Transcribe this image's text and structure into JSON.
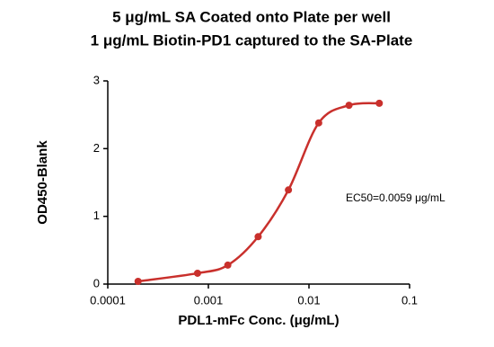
{
  "chart_data": {
    "type": "scatter",
    "title": [
      "5 μg/mL SA Coated onto Plate per well",
      "1 μg/mL Biotin-PD1 captured to the SA-Plate"
    ],
    "xlabel": "PDL1-mFc Conc. (μg/mL)",
    "ylabel": "OD450-Blank",
    "x": [
      0.0002,
      0.00078,
      0.00156,
      0.003125,
      0.00625,
      0.0125,
      0.025,
      0.05
    ],
    "values": [
      0.04,
      0.16,
      0.28,
      0.7,
      1.39,
      2.38,
      2.64,
      2.67
    ],
    "color": "#c9302c",
    "curve": true,
    "xscale": "log",
    "xlim": [
      0.0001,
      0.1
    ],
    "xticks": [
      0.0001,
      0.001,
      0.01,
      0.1
    ],
    "ylim": [
      0,
      3
    ],
    "yticks": [
      0,
      1,
      2,
      3
    ],
    "annotation": "EC50=0.0059 μg/mL"
  }
}
